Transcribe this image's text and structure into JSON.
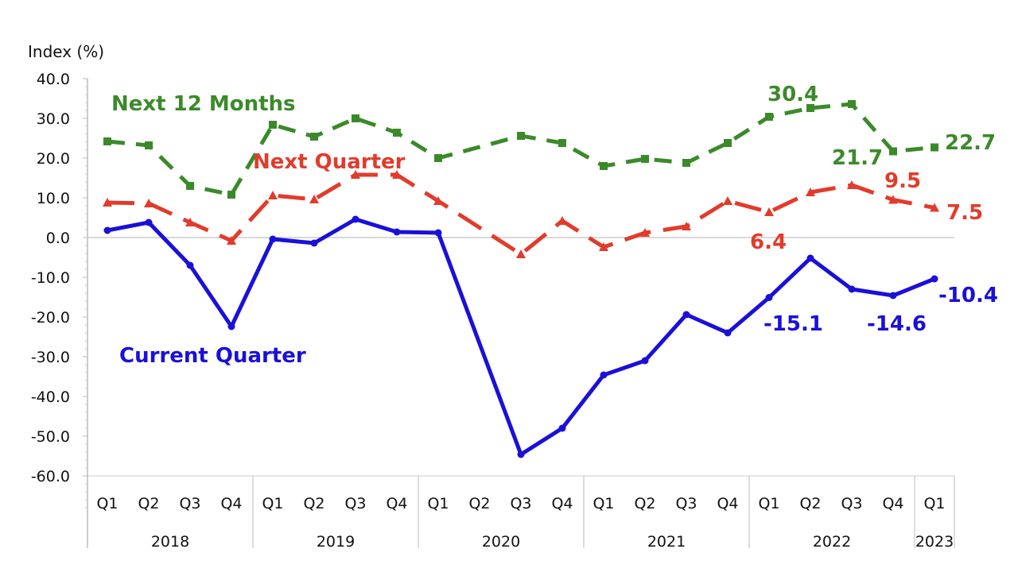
{
  "chart_data": {
    "type": "line",
    "ylabel": "Index (%)",
    "ylim": [
      -60,
      40
    ],
    "yticks": [
      "40.0",
      "30.0",
      "20.0",
      "10.0",
      "0.0",
      "-10.0",
      "-20.0",
      "-30.0",
      "-40.0",
      "-50.0",
      "-60.0"
    ],
    "grid": false,
    "categories": [
      "Q1",
      "Q2",
      "Q3",
      "Q4",
      "Q1",
      "Q2",
      "Q3",
      "Q4",
      "Q1",
      "Q2",
      "Q3",
      "Q4",
      "Q1",
      "Q2",
      "Q3",
      "Q4",
      "Q1",
      "Q2",
      "Q3",
      "Q4",
      "Q1"
    ],
    "years": [
      "2018",
      "2019",
      "2020",
      "2021",
      "2022",
      "2023"
    ],
    "series": [
      {
        "name": "Next 12 Months",
        "color": "#3b8a2a",
        "marker": "square",
        "dash": "dashed-short",
        "values": [
          24.2,
          23.2,
          13.0,
          10.8,
          28.4,
          25.4,
          30.0,
          26.4,
          20.0,
          null,
          25.6,
          23.8,
          18.0,
          19.8,
          18.8,
          23.8,
          30.4,
          32.6,
          33.6,
          21.7,
          22.7
        ]
      },
      {
        "name": "Next Quarter",
        "color": "#e23b2b",
        "marker": "triangle",
        "dash": "dashed-long",
        "values": [
          8.8,
          8.6,
          3.8,
          -0.8,
          10.6,
          9.6,
          15.8,
          15.8,
          9.2,
          null,
          -4.2,
          4.2,
          -2.4,
          1.2,
          2.8,
          9.2,
          6.4,
          11.4,
          13.2,
          9.5,
          7.5
        ]
      },
      {
        "name": "Current Quarter",
        "color": "#1a10d8",
        "marker": "circle",
        "dash": "solid",
        "values": [
          1.8,
          3.8,
          -7.0,
          -22.4,
          -0.4,
          -1.4,
          4.6,
          1.4,
          1.2,
          null,
          -54.6,
          -48.0,
          -34.6,
          -31.0,
          -19.4,
          -24.0,
          -15.1,
          -5.2,
          -13.0,
          -14.6,
          -10.4
        ]
      }
    ],
    "data_labels": [
      {
        "series": 0,
        "index": 16,
        "text": "30.4"
      },
      {
        "series": 0,
        "index": 19,
        "text": "21.7"
      },
      {
        "series": 0,
        "index": 20,
        "text": "22.7"
      },
      {
        "series": 1,
        "index": 16,
        "text": "6.4"
      },
      {
        "series": 1,
        "index": 19,
        "text": "9.5"
      },
      {
        "series": 1,
        "index": 20,
        "text": "7.5"
      },
      {
        "series": 2,
        "index": 16,
        "text": "-15.1"
      },
      {
        "series": 2,
        "index": 19,
        "text": "-14.6"
      },
      {
        "series": 2,
        "index": 20,
        "text": "-10.4"
      }
    ]
  }
}
